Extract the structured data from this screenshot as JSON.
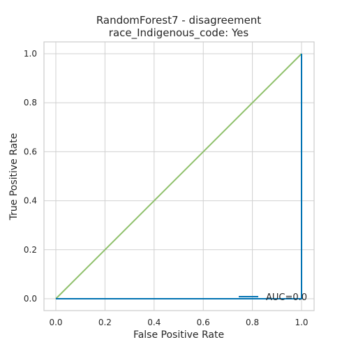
{
  "chart_data": {
    "type": "line",
    "title": "RandomForest7 - disagreement",
    "subtitle": "race_Indigenous_code: Yes",
    "xlabel": "False Positive Rate",
    "ylabel": "True Positive Rate",
    "xlim": [
      0.0,
      1.0
    ],
    "ylim": [
      0.0,
      1.0
    ],
    "x_ticks": [
      "0.0",
      "0.2",
      "0.4",
      "0.6",
      "0.8",
      "1.0"
    ],
    "y_ticks": [
      "0.0",
      "0.2",
      "0.4",
      "0.6",
      "0.8",
      "1.0"
    ],
    "grid": true,
    "legend_position": "lower-right",
    "series": [
      {
        "name": "AUC=0.0",
        "color": "#0072b2",
        "x": [
          0.0,
          1.0,
          1.0
        ],
        "y": [
          0.0,
          0.0,
          1.0
        ]
      },
      {
        "color": "#8fc06b",
        "x": [
          0.0,
          1.0
        ],
        "y": [
          0.0,
          1.0
        ]
      }
    ]
  }
}
